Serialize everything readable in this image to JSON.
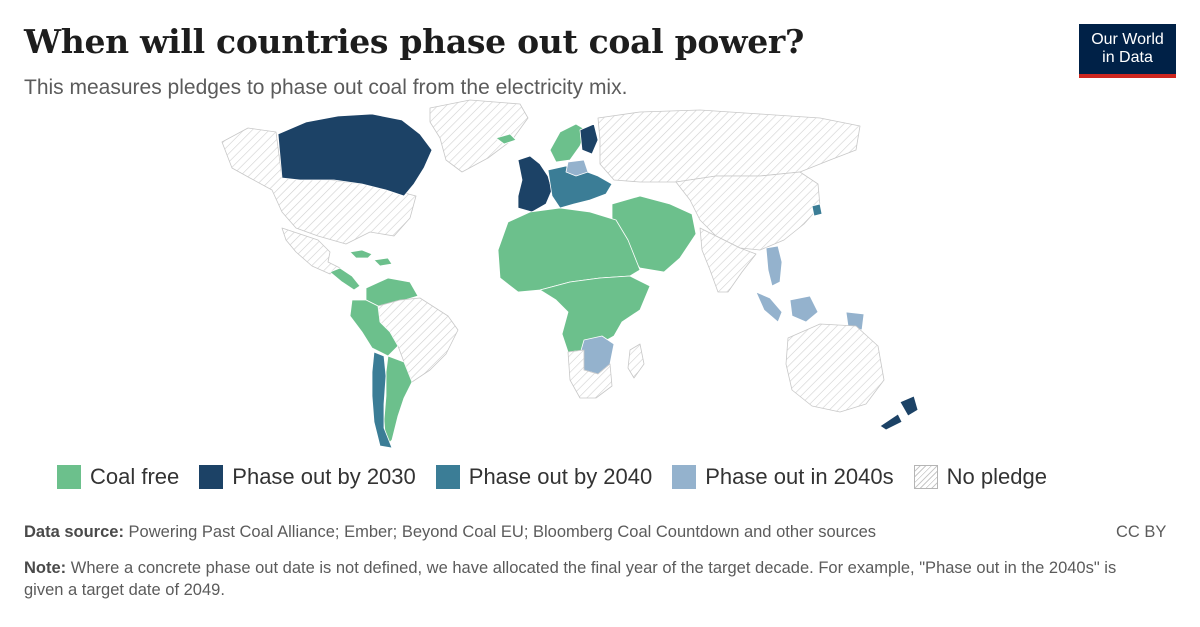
{
  "header": {
    "title": "When will countries phase out coal power?",
    "subtitle": "This measures pledges to phase out coal from the electricity mix."
  },
  "logo": {
    "line1": "Our World",
    "line2": "in Data"
  },
  "colors": {
    "coal_free": "#6cc08c",
    "phase_out_2030": "#1c4266",
    "phase_out_2040": "#3b7d96",
    "phase_out_2040s": "#94b2cd",
    "no_pledge": "hatched",
    "ocean": "#ffffff"
  },
  "legend": [
    {
      "key": "coal_free",
      "label": "Coal free"
    },
    {
      "key": "phase_out_2030",
      "label": "Phase out by 2030"
    },
    {
      "key": "phase_out_2040",
      "label": "Phase out by 2040"
    },
    {
      "key": "phase_out_2040s",
      "label": "Phase out in 2040s"
    },
    {
      "key": "no_pledge",
      "label": "No pledge"
    }
  ],
  "map_regions": [
    {
      "region": "Canada",
      "category": "phase_out_2030"
    },
    {
      "region": "United States",
      "category": "no_pledge"
    },
    {
      "region": "Mexico",
      "category": "no_pledge"
    },
    {
      "region": "Greenland",
      "category": "no_pledge"
    },
    {
      "region": "Central America",
      "category": "coal_free"
    },
    {
      "region": "Caribbean",
      "category": "coal_free"
    },
    {
      "region": "Venezuela / Guyanas",
      "category": "coal_free"
    },
    {
      "region": "Brazil",
      "category": "no_pledge"
    },
    {
      "region": "Bolivia / Peru",
      "category": "coal_free"
    },
    {
      "region": "Chile",
      "category": "phase_out_2040"
    },
    {
      "region": "Argentina",
      "category": "coal_free"
    },
    {
      "region": "Iceland",
      "category": "coal_free"
    },
    {
      "region": "Western Europe",
      "category": "phase_out_2030"
    },
    {
      "region": "Central Europe",
      "category": "phase_out_2040"
    },
    {
      "region": "Poland",
      "category": "phase_out_2040s"
    },
    {
      "region": "Nordic countries",
      "category": "coal_free"
    },
    {
      "region": "Finland",
      "category": "phase_out_2030"
    },
    {
      "region": "Russia",
      "category": "no_pledge"
    },
    {
      "region": "North Africa & Sahel",
      "category": "coal_free"
    },
    {
      "region": "Middle East",
      "category": "coal_free"
    },
    {
      "region": "Central Africa",
      "category": "coal_free"
    },
    {
      "region": "Southern Africa",
      "category": "phase_out_2040s"
    },
    {
      "region": "South Africa",
      "category": "no_pledge"
    },
    {
      "region": "Madagascar",
      "category": "no_pledge"
    },
    {
      "region": "China",
      "category": "no_pledge"
    },
    {
      "region": "India",
      "category": "no_pledge"
    },
    {
      "region": "South Korea",
      "category": "phase_out_2040"
    },
    {
      "region": "Vietnam",
      "category": "phase_out_2040s"
    },
    {
      "region": "Indonesia",
      "category": "phase_out_2040s"
    },
    {
      "region": "Australia",
      "category": "no_pledge"
    },
    {
      "region": "New Zealand",
      "category": "phase_out_2030"
    }
  ],
  "footer": {
    "source_label": "Data source:",
    "source_text": "Powering Past Coal Alliance; Ember; Beyond Coal EU; Bloomberg Coal Countdown and other sources",
    "license": "CC BY",
    "note_label": "Note:",
    "note_text": "Where a concrete phase out date is not defined, we have allocated the final year of the target decade. For example, \"Phase out in the 2040s\" is given a target date of 2049."
  }
}
